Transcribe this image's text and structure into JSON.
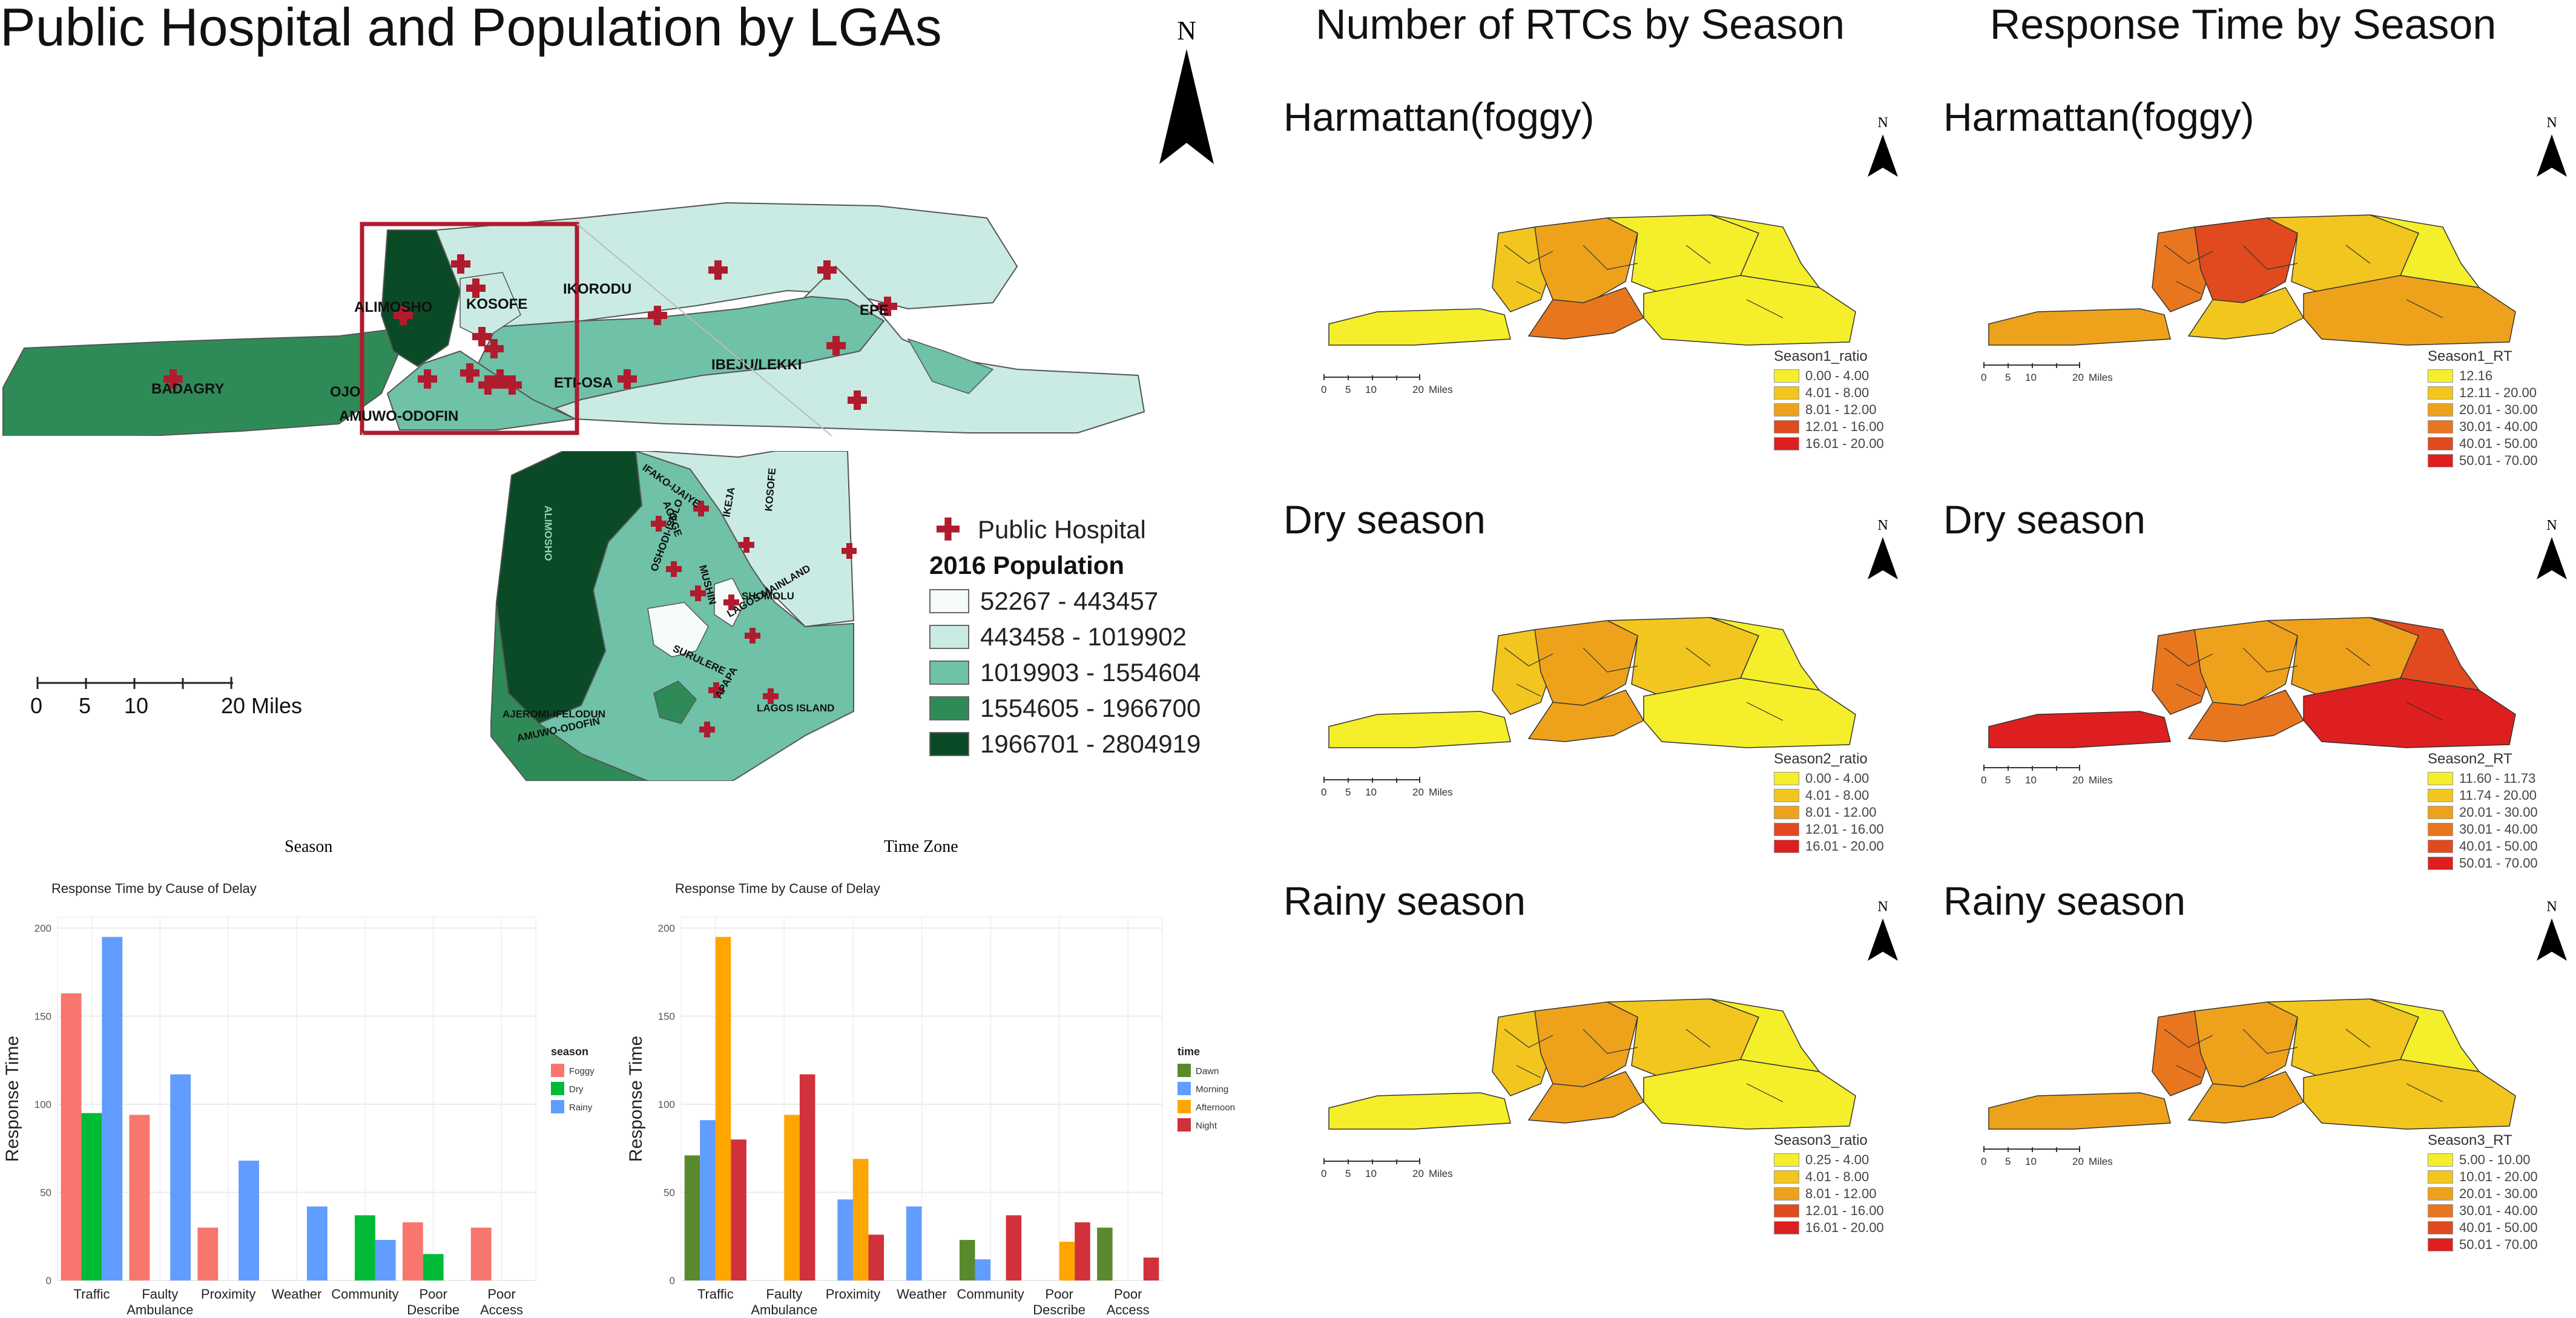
{
  "left_panel": {
    "title": "Public Hospital and Population by LGAs",
    "north_label": "N",
    "lga_labels": {
      "alimosho": "ALIMOSHO",
      "kosofe": "KOSOFE",
      "ikorodu": "IKORODU",
      "epe": "EPE",
      "badagry": "BADAGRY",
      "ojo": "OJO",
      "eti_osa": "ETI-OSA",
      "ibeju_lekki": "IBEJU/LEKKI",
      "amuwo_odofin": "AMUWO-ODOFIN"
    },
    "inset_labels": {
      "ifako_ijaiye": "IFAKO-IJAIYE",
      "agege": "AGEGE",
      "ikeja": "IKEJA",
      "kosofe": "KOSOFE",
      "alimosho": "ALIMOSHO",
      "oshodi_isolo": "OSHODI-ISOLO",
      "shomolu": "SHOMOLU",
      "lagos_mainland": "LAGOS MAINLAND",
      "surulere": "SURULERE",
      "ajeromi_ifelodun": "AJEROMI-IFELODUN",
      "amuwo_odofin": "AMUWO-ODOFIN",
      "lagos_island": "LAGOS ISLAND",
      "apapa": "APAPA",
      "mushin": "MUSHIN"
    },
    "legend": {
      "hospital_label": "Public Hospital",
      "population_title": "2016 Population",
      "classes": [
        {
          "label": "52267 - 443457",
          "color": "#f4fbf9"
        },
        {
          "label": "443458 - 1019902",
          "color": "#c9ebe3"
        },
        {
          "label": "1019903 - 1554604",
          "color": "#6fc1a7"
        },
        {
          "label": "1554605 - 1966700",
          "color": "#2e8b57"
        },
        {
          "label": "1966701 - 2804919",
          "color": "#0a4a26"
        }
      ]
    },
    "scalebar": {
      "ticks": [
        "0",
        "5",
        "10",
        "20"
      ],
      "unit": "Miles"
    }
  },
  "charts": [
    {
      "id": "season",
      "section_title": "Season",
      "chart_data": {
        "type": "bar",
        "title": "Response Time by Cause of Delay",
        "ylabel": "Response Time",
        "ylim": [
          0,
          200
        ],
        "yticks": [
          0,
          50,
          100,
          150,
          200
        ],
        "categories": [
          "Traffic",
          "Faulty Ambulance",
          "Proximity",
          "Weather",
          "Community",
          "Poor Describe",
          "Poor Access"
        ],
        "legend_title": "season",
        "series": [
          {
            "name": "Foggy",
            "color": "#f8766d",
            "values": [
              163,
              94,
              30,
              null,
              null,
              33,
              30
            ]
          },
          {
            "name": "Dry",
            "color": "#00ba38",
            "values": [
              95,
              null,
              null,
              null,
              37,
              15,
              null
            ]
          },
          {
            "name": "Rainy",
            "color": "#619cff",
            "values": [
              195,
              117,
              68,
              42,
              23,
              null,
              null
            ]
          }
        ]
      }
    },
    {
      "id": "time",
      "section_title": "Time Zone",
      "chart_data": {
        "type": "bar",
        "title": "Response Time by Cause of Delay",
        "ylabel": "Response Time",
        "ylim": [
          0,
          200
        ],
        "yticks": [
          0,
          50,
          100,
          150,
          200
        ],
        "categories": [
          "Traffic",
          "Faulty Ambulance",
          "Proximity",
          "Weather",
          "Community",
          "Poor Describe",
          "Poor Access"
        ],
        "legend_title": "time",
        "series": [
          {
            "name": "Dawn",
            "color": "#5b8a2e",
            "values": [
              71,
              null,
              null,
              null,
              23,
              null,
              30
            ]
          },
          {
            "name": "Morning",
            "color": "#619cff",
            "values": [
              91,
              null,
              46,
              42,
              12,
              null,
              null
            ]
          },
          {
            "name": "Afternoon",
            "color": "#ffa500",
            "values": [
              195,
              94,
              69,
              null,
              null,
              22,
              null
            ]
          },
          {
            "name": "Night",
            "color": "#d1313b",
            "values": [
              80,
              117,
              26,
              null,
              37,
              33,
              13
            ]
          }
        ]
      }
    }
  ],
  "rtc": {
    "title": "Number of RTCs by Season",
    "seasons": [
      {
        "label": "Harmattan(foggy)",
        "legend_title": "Season1_ratio",
        "classes": [
          "0.00 - 4.00",
          "4.01 - 8.00",
          "8.01 - 12.00",
          "12.01 - 16.00",
          "16.01 - 20.00"
        ]
      },
      {
        "label": "Dry season",
        "legend_title": "Season2_ratio",
        "classes": [
          "0.00 - 4.00",
          "4.01 - 8.00",
          "8.01 - 12.00",
          "12.01 - 16.00",
          "16.01 - 20.00"
        ]
      },
      {
        "label": "Rainy season",
        "legend_title": "Season3_ratio",
        "classes": [
          "0.25 - 4.00",
          "4.01 - 8.00",
          "8.01 - 12.00",
          "12.01 - 16.00",
          "16.01 - 20.00"
        ]
      }
    ]
  },
  "response": {
    "title": "Response Time by Season",
    "seasons": [
      {
        "label": "Harmattan(foggy)",
        "legend_title": "Season1_RT",
        "classes": [
          "12.16",
          "12.11 - 20.00",
          "20.01 - 30.00",
          "30.01 - 40.00",
          "40.01 - 50.00",
          "50.01 - 70.00"
        ]
      },
      {
        "label": "Dry season",
        "legend_title": "Season2_RT",
        "classes": [
          "11.60 - 11.73",
          "11.74 - 20.00",
          "20.01 - 30.00",
          "30.01 - 40.00",
          "40.01 - 50.00",
          "50.01 - 70.00"
        ]
      },
      {
        "label": "Rainy season",
        "legend_title": "Season3_RT",
        "classes": [
          "5.00 - 10.00",
          "10.01 - 20.00",
          "20.01 - 30.00",
          "30.01 - 40.00",
          "40.01 - 50.00",
          "50.01 - 70.00"
        ]
      }
    ]
  },
  "mini_scale": {
    "ticks": [
      "0",
      "5",
      "10",
      "20"
    ],
    "unit": "Miles"
  },
  "heat_colors": [
    "#f5ee2a",
    "#f2c61f",
    "#eea21c",
    "#e8761f",
    "#e04a1e",
    "#dd1f1f"
  ]
}
